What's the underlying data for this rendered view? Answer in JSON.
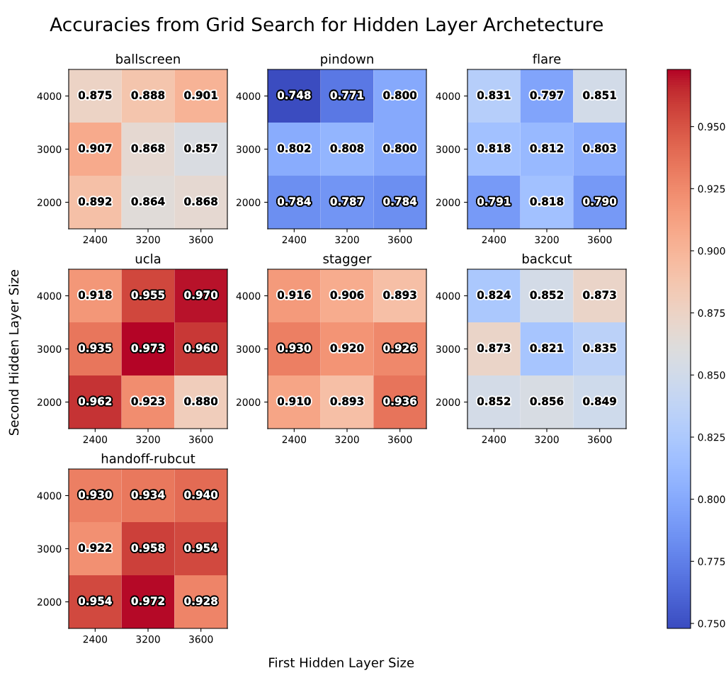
{
  "chart_data": [
    {
      "type": "heatmap",
      "title": "ballscreen",
      "xlabel": "First Hidden Layer Size",
      "ylabel": "Second Hidden Layer Size",
      "annotations": [
        "Accuracies from Grid Search for Hidden Layer Archetecture"
      ],
      "categories": [
        "2400",
        "3200",
        "3600"
      ],
      "y_categories": [
        "4000",
        "3000",
        "2000"
      ],
      "cells": [
        [
          0.875,
          0.888,
          0.901
        ],
        [
          0.907,
          0.868,
          0.857
        ],
        [
          0.892,
          0.864,
          0.868
        ]
      ],
      "cell_labels": [
        [
          "0.875",
          "0.888",
          "0.901"
        ],
        [
          "0.907",
          "0.868",
          "0.857"
        ],
        [
          "0.892",
          "0.864",
          "0.868"
        ]
      ],
      "clim": [
        0.748,
        0.973
      ],
      "cticks": [
        {
          "value": 0.75,
          "label": "0.750"
        },
        {
          "value": 0.775,
          "label": "0.775"
        },
        {
          "value": 0.8,
          "label": "0.800"
        },
        {
          "value": 0.825,
          "label": "0.825"
        },
        {
          "value": 0.85,
          "label": "0.850"
        },
        {
          "value": 0.875,
          "label": "0.875"
        },
        {
          "value": 0.9,
          "label": "0.900"
        },
        {
          "value": 0.925,
          "label": "0.925"
        },
        {
          "value": 0.95,
          "label": "0.950"
        }
      ]
    },
    {
      "type": "heatmap",
      "title": "pindown",
      "categories": [
        "2400",
        "3200",
        "3600"
      ],
      "y_categories": [
        "4000",
        "3000",
        "2000"
      ],
      "cells": [
        [
          0.748,
          0.771,
          0.8
        ],
        [
          0.802,
          0.808,
          0.8
        ],
        [
          0.784,
          0.787,
          0.784
        ]
      ],
      "cell_labels": [
        [
          "0.748",
          "0.771",
          "0.800"
        ],
        [
          "0.802",
          "0.808",
          "0.800"
        ],
        [
          "0.784",
          "0.787",
          "0.784"
        ]
      ]
    },
    {
      "type": "heatmap",
      "title": "flare",
      "categories": [
        "2400",
        "3200",
        "3600"
      ],
      "y_categories": [
        "4000",
        "3000",
        "2000"
      ],
      "cells": [
        [
          0.831,
          0.797,
          0.851
        ],
        [
          0.818,
          0.812,
          0.803
        ],
        [
          0.791,
          0.818,
          0.79
        ]
      ],
      "cell_labels": [
        [
          "0.831",
          "0.797",
          "0.851"
        ],
        [
          "0.818",
          "0.812",
          "0.803"
        ],
        [
          "0.791",
          "0.818",
          "0.790"
        ]
      ]
    },
    {
      "type": "heatmap",
      "title": "ucla",
      "categories": [
        "2400",
        "3200",
        "3600"
      ],
      "y_categories": [
        "4000",
        "3000",
        "2000"
      ],
      "cells": [
        [
          0.918,
          0.955,
          0.97
        ],
        [
          0.935,
          0.973,
          0.96
        ],
        [
          0.962,
          0.923,
          0.88
        ]
      ],
      "cell_labels": [
        [
          "0.918",
          "0.955",
          "0.970"
        ],
        [
          "0.935",
          "0.973",
          "0.960"
        ],
        [
          "0.962",
          "0.923",
          "0.880"
        ]
      ]
    },
    {
      "type": "heatmap",
      "title": "stagger",
      "categories": [
        "2400",
        "3200",
        "3600"
      ],
      "y_categories": [
        "4000",
        "3000",
        "2000"
      ],
      "cells": [
        [
          0.916,
          0.906,
          0.893
        ],
        [
          0.93,
          0.92,
          0.926
        ],
        [
          0.91,
          0.893,
          0.936
        ]
      ],
      "cell_labels": [
        [
          "0.916",
          "0.906",
          "0.893"
        ],
        [
          "0.930",
          "0.920",
          "0.926"
        ],
        [
          "0.910",
          "0.893",
          "0.936"
        ]
      ]
    },
    {
      "type": "heatmap",
      "title": "backcut",
      "categories": [
        "2400",
        "3200",
        "3600"
      ],
      "y_categories": [
        "4000",
        "3000",
        "2000"
      ],
      "cells": [
        [
          0.824,
          0.852,
          0.873
        ],
        [
          0.873,
          0.821,
          0.835
        ],
        [
          0.852,
          0.856,
          0.849
        ]
      ],
      "cell_labels": [
        [
          "0.824",
          "0.852",
          "0.873"
        ],
        [
          "0.873",
          "0.821",
          "0.835"
        ],
        [
          "0.852",
          "0.856",
          "0.849"
        ]
      ]
    },
    {
      "type": "heatmap",
      "title": "handoff-rubcut",
      "categories": [
        "2400",
        "3200",
        "3600"
      ],
      "y_categories": [
        "4000",
        "3000",
        "2000"
      ],
      "cells": [
        [
          0.93,
          0.934,
          0.94
        ],
        [
          0.922,
          0.958,
          0.954
        ],
        [
          0.954,
          0.972,
          0.928
        ]
      ],
      "cell_labels": [
        [
          "0.930",
          "0.934",
          "0.940"
        ],
        [
          "0.922",
          "0.958",
          "0.954"
        ],
        [
          "0.954",
          "0.972",
          "0.928"
        ]
      ]
    }
  ]
}
